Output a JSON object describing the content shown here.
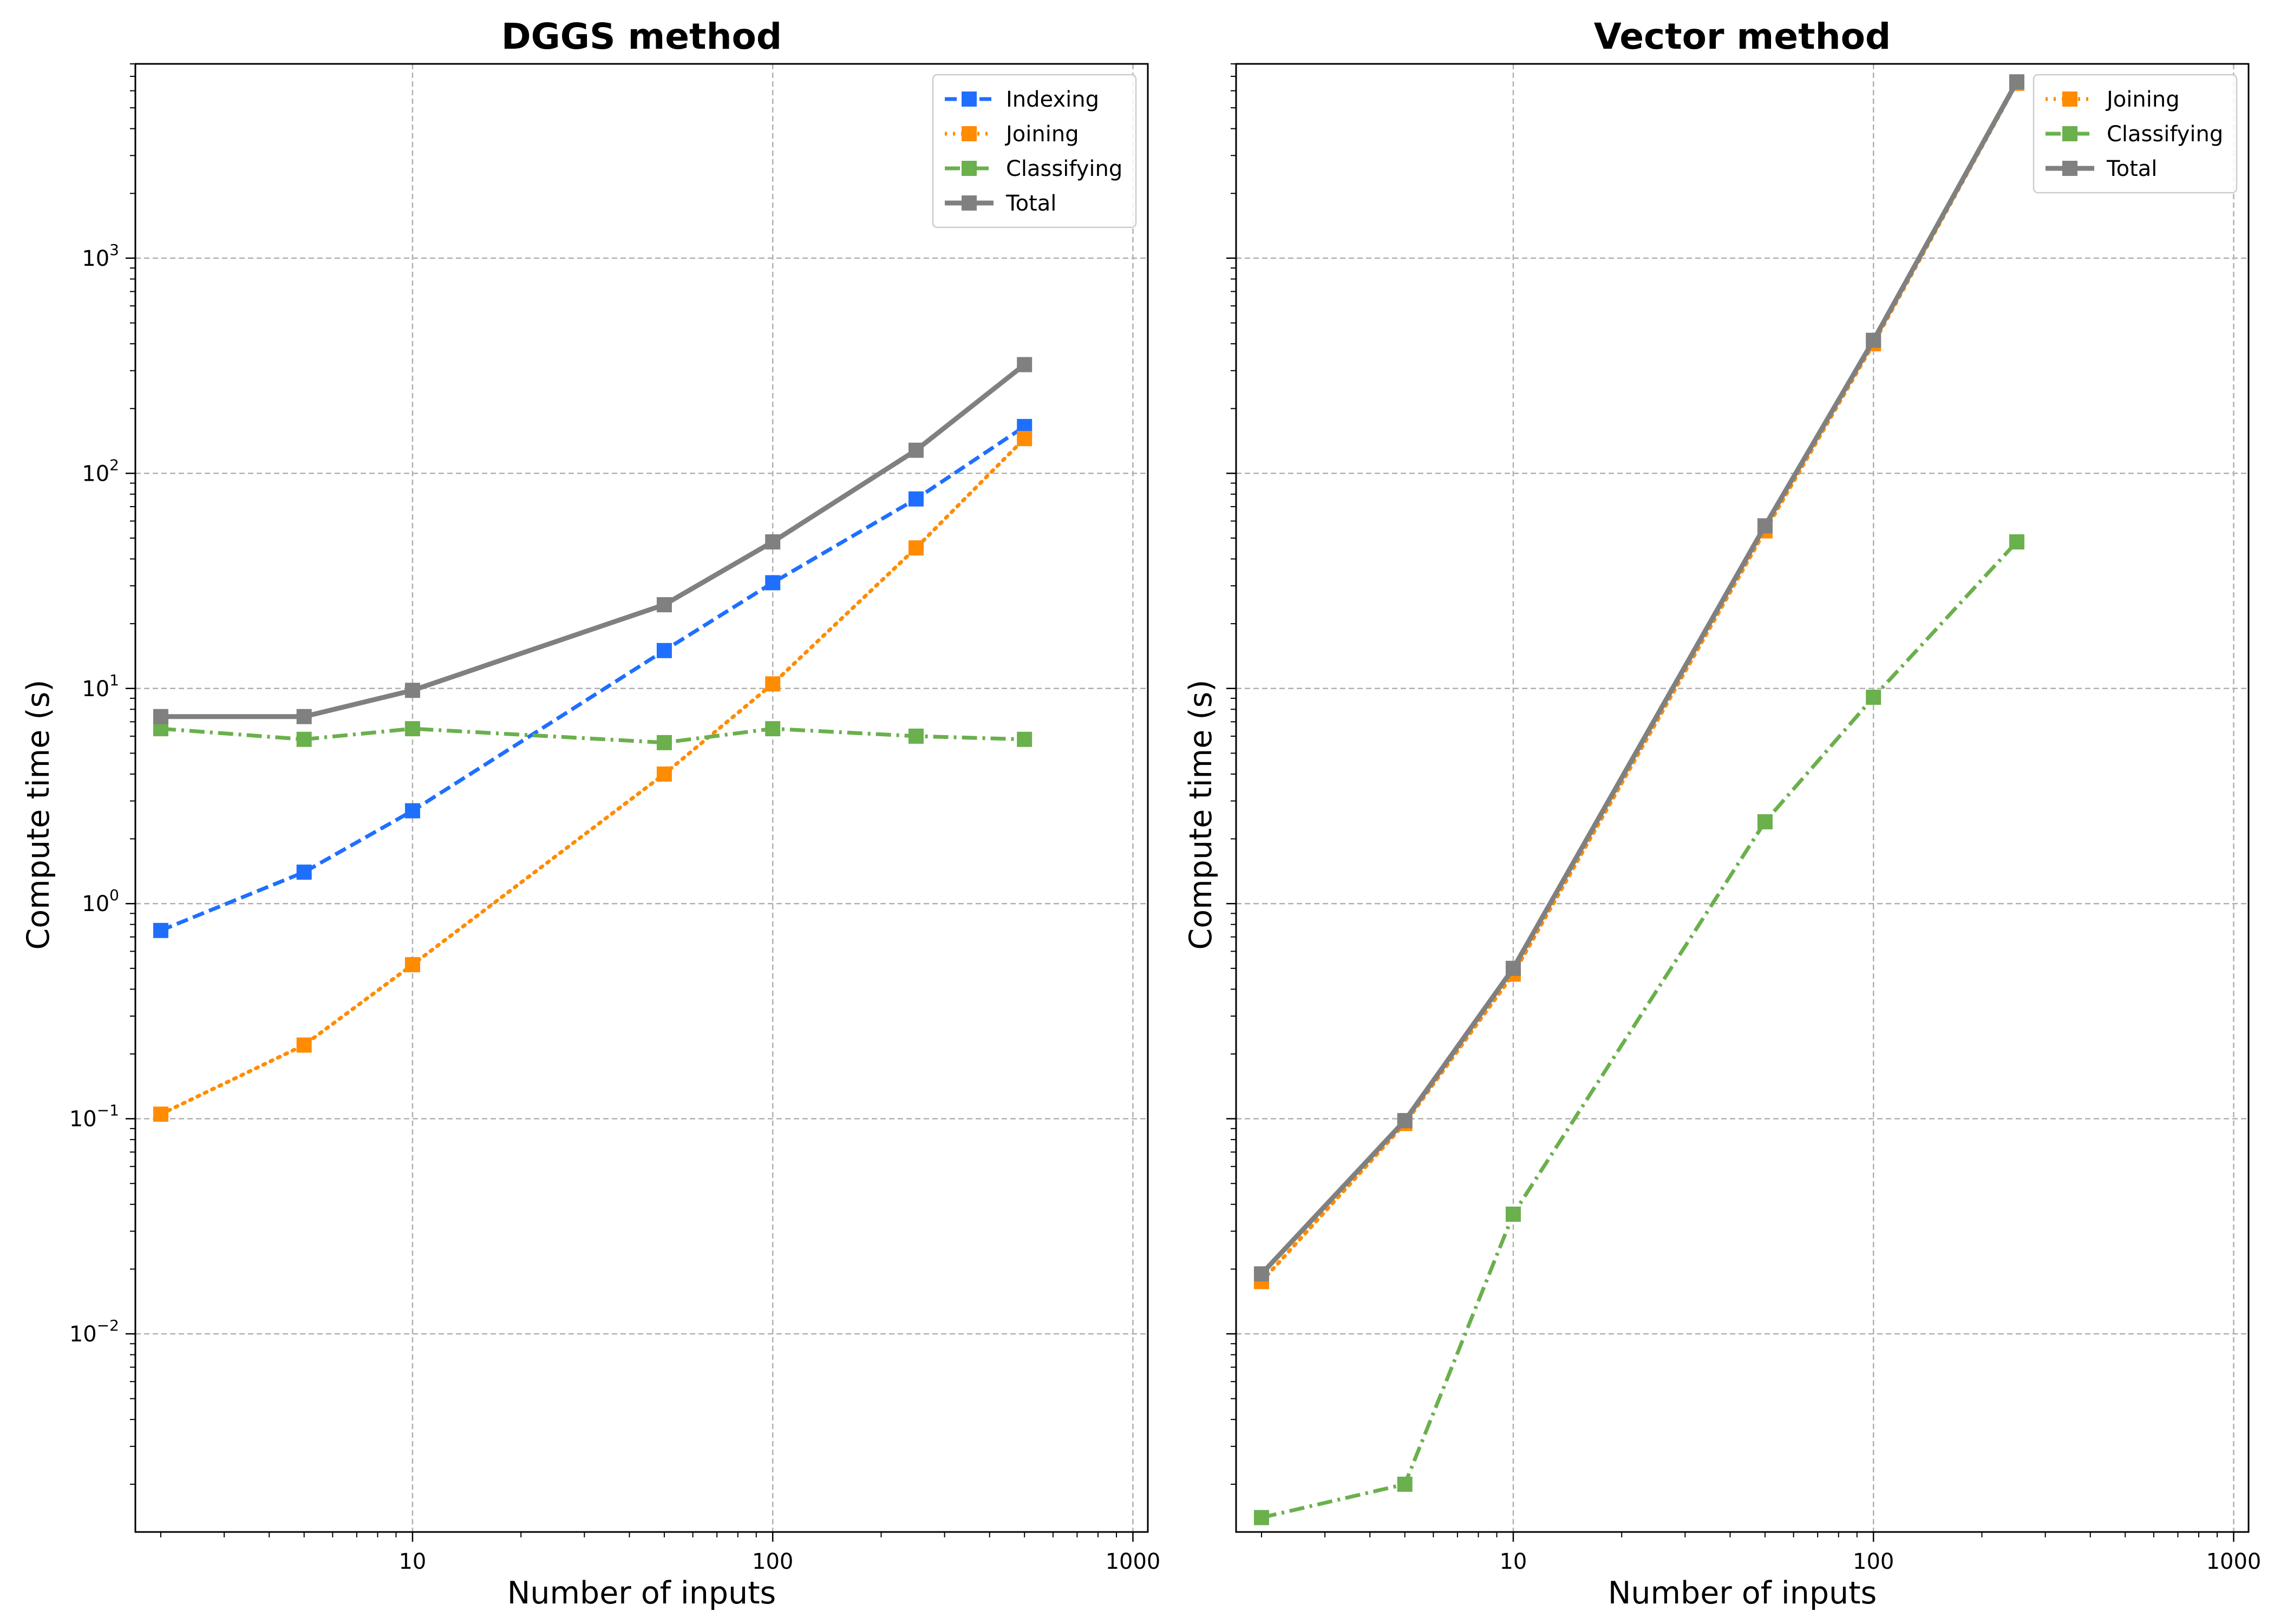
{
  "chart_data": [
    {
      "type": "line",
      "title": "DGGS method",
      "xlabel": "Number of inputs",
      "ylabel": "Compute time (s)",
      "xscale": "log",
      "yscale": "log",
      "xlim": [
        1.7,
        1100
      ],
      "ylim": [
        0.0012,
        8000
      ],
      "xticks": [
        {
          "value": 10,
          "label": "10"
        },
        {
          "value": 100,
          "label": "100"
        },
        {
          "value": 1000,
          "label": "1000"
        }
      ],
      "yticks": [
        {
          "value": 0.01,
          "base": "10",
          "exp": "−2"
        },
        {
          "value": 0.1,
          "base": "10",
          "exp": "−1"
        },
        {
          "value": 1,
          "base": "10",
          "exp": "0"
        },
        {
          "value": 10,
          "base": "10",
          "exp": "1"
        },
        {
          "value": 100,
          "base": "10",
          "exp": "2"
        },
        {
          "value": 1000,
          "base": "10",
          "exp": "3"
        }
      ],
      "grid": true,
      "legend_position": "top-right",
      "series": [
        {
          "name": "Indexing",
          "color": "#1f6fff",
          "dash": "dashed",
          "x": [
            2,
            5,
            10,
            50,
            100,
            250,
            500
          ],
          "y": [
            0.75,
            1.4,
            2.7,
            15,
            31,
            76,
            165
          ]
        },
        {
          "name": "Joining",
          "color": "#ff8c00",
          "dash": "dotted",
          "x": [
            2,
            5,
            10,
            50,
            100,
            250,
            500
          ],
          "y": [
            0.105,
            0.22,
            0.52,
            4.0,
            10.5,
            45,
            145
          ]
        },
        {
          "name": "Classifying",
          "color": "#6ab04c",
          "dash": "dashdot",
          "x": [
            2,
            5,
            10,
            50,
            100,
            250,
            500
          ],
          "y": [
            6.5,
            5.8,
            6.5,
            5.6,
            6.5,
            6.0,
            5.8
          ]
        },
        {
          "name": "Total",
          "color": "#808080",
          "dash": "solid",
          "x": [
            2,
            5,
            10,
            50,
            100,
            250,
            500
          ],
          "y": [
            7.4,
            7.4,
            9.8,
            24.5,
            48,
            128,
            320
          ]
        }
      ]
    },
    {
      "type": "line",
      "title": "Vector method",
      "xlabel": "Number of inputs",
      "ylabel": "Compute time (s)",
      "xscale": "log",
      "yscale": "log",
      "xlim": [
        1.7,
        1100
      ],
      "ylim": [
        0.0012,
        8000
      ],
      "xticks": [
        {
          "value": 10,
          "label": "10"
        },
        {
          "value": 100,
          "label": "100"
        },
        {
          "value": 1000,
          "label": "1000"
        }
      ],
      "yticks": [],
      "grid": true,
      "legend_position": "top-right",
      "series": [
        {
          "name": "Joining",
          "color": "#ff8c00",
          "dash": "dotted",
          "x": [
            2,
            5,
            10,
            50,
            100,
            250
          ],
          "y": [
            0.0175,
            0.095,
            0.47,
            54,
            400,
            6500
          ]
        },
        {
          "name": "Classifying",
          "color": "#6ab04c",
          "dash": "dashdot",
          "x": [
            2,
            5,
            10,
            50,
            100,
            250
          ],
          "y": [
            0.0014,
            0.002,
            0.036,
            2.4,
            9.1,
            48
          ]
        },
        {
          "name": "Total",
          "color": "#808080",
          "dash": "solid",
          "x": [
            2,
            5,
            10,
            50,
            100,
            250
          ],
          "y": [
            0.019,
            0.098,
            0.5,
            57,
            415,
            6600
          ]
        }
      ]
    }
  ]
}
